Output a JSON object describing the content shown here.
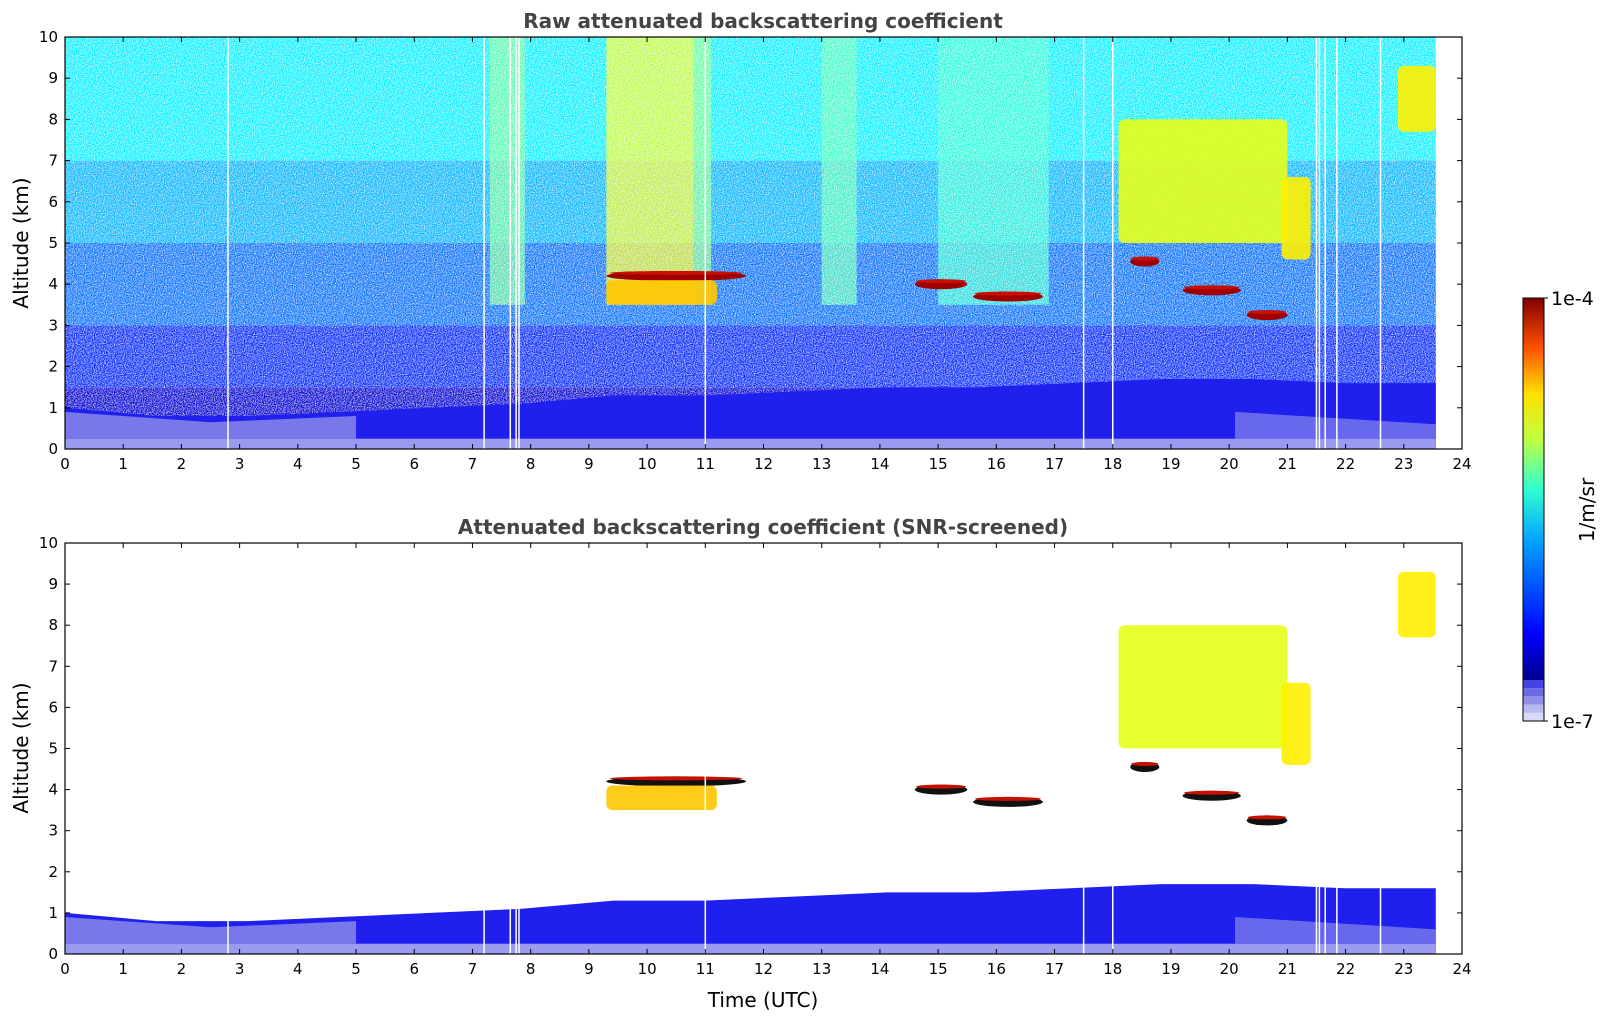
{
  "chart_data": [
    {
      "type": "heatmap",
      "title": "Raw attenuated backscattering coefficient",
      "xlabel": "",
      "ylabel": "Altitude (km)",
      "xlim": [
        0,
        24
      ],
      "ylim": [
        0,
        10
      ],
      "xticks": [
        "0",
        "1",
        "2",
        "3",
        "4",
        "5",
        "6",
        "7",
        "8",
        "9",
        "10",
        "11",
        "12",
        "13",
        "14",
        "15",
        "16",
        "17",
        "18",
        "19",
        "20",
        "21",
        "22",
        "23",
        "24"
      ],
      "yticks": [
        "0",
        "1",
        "2",
        "3",
        "4",
        "5",
        "6",
        "7",
        "8",
        "9",
        "10"
      ],
      "data_end_time": 23.55,
      "gaps_utc": [
        2.8,
        7.2,
        7.65,
        7.75,
        7.8,
        11.0,
        17.5,
        18.0,
        21.5,
        21.55,
        21.65,
        21.85,
        22.6
      ],
      "features": [
        {
          "kind": "boundary_layer",
          "t_start": 0,
          "t_end": 23.55,
          "z_top_km": [
            1.0,
            0.8,
            0.8,
            0.9,
            1.0,
            1.1,
            1.3,
            1.3,
            1.4,
            1.5,
            1.5,
            1.6,
            1.7,
            1.7,
            1.6,
            1.6
          ]
        },
        {
          "kind": "liquid_layer",
          "t_start": 9.3,
          "t_end": 11.7,
          "z_km": 4.2,
          "color_level": 1.0
        },
        {
          "kind": "virga",
          "t_start": 9.3,
          "t_end": 11.2,
          "z_bottom_km": 3.5,
          "z_top_km": 4.1,
          "color_level": 0.68
        },
        {
          "kind": "liquid_layer",
          "t_start": 14.6,
          "t_end": 15.5,
          "z_km": 4.0,
          "color_level": 1.0
        },
        {
          "kind": "liquid_layer",
          "t_start": 15.6,
          "t_end": 16.8,
          "z_km": 3.7,
          "color_level": 1.0
        },
        {
          "kind": "liquid_layer",
          "t_start": 19.2,
          "t_end": 20.2,
          "z_km": 3.85,
          "color_level": 1.0
        },
        {
          "kind": "liquid_layer",
          "t_start": 20.3,
          "t_end": 21.0,
          "z_km": 3.25,
          "color_level": 1.0
        },
        {
          "kind": "liquid_layer",
          "t_start": 18.3,
          "t_end": 18.8,
          "z_km": 4.55,
          "color_level": 1.0
        },
        {
          "kind": "ice_cloud",
          "t_start": 18.1,
          "t_end": 21.0,
          "z_bottom_km": 5.0,
          "z_top_km": 8.0,
          "color_level": 0.6
        },
        {
          "kind": "ice_cloud",
          "t_start": 20.9,
          "t_end": 21.4,
          "z_bottom_km": 4.6,
          "z_top_km": 6.6,
          "color_level": 0.64
        },
        {
          "kind": "ice_cloud",
          "t_start": 22.9,
          "t_end": 23.55,
          "z_bottom_km": 7.7,
          "z_top_km": 9.3,
          "color_level": 0.64
        }
      ]
    },
    {
      "type": "heatmap",
      "title": "Attenuated backscattering coefficient (SNR-screened)",
      "xlabel": "Time (UTC)",
      "ylabel": "Altitude (km)",
      "xlim": [
        0,
        24
      ],
      "ylim": [
        0,
        10
      ],
      "xticks": [
        "0",
        "1",
        "2",
        "3",
        "4",
        "5",
        "6",
        "7",
        "8",
        "9",
        "10",
        "11",
        "12",
        "13",
        "14",
        "15",
        "16",
        "17",
        "18",
        "19",
        "20",
        "21",
        "22",
        "23",
        "24"
      ],
      "yticks": [
        "0",
        "1",
        "2",
        "3",
        "4",
        "5",
        "6",
        "7",
        "8",
        "9",
        "10"
      ],
      "data_end_time": 23.55,
      "gaps_utc": [
        2.8,
        7.2,
        7.65,
        7.75,
        7.8,
        11.0,
        17.5,
        18.0,
        21.5,
        21.55,
        21.65,
        21.85,
        22.6
      ]
    }
  ],
  "colorbar": {
    "label": "1/m/sr",
    "max_label": "1e-4",
    "min_label": "1e-7",
    "scale": "log",
    "colormap": "jet",
    "low_colors": [
      "#d8d8f8",
      "#b8b8f2",
      "#9090ea",
      "#6a6ae6",
      "#4444e4"
    ]
  }
}
